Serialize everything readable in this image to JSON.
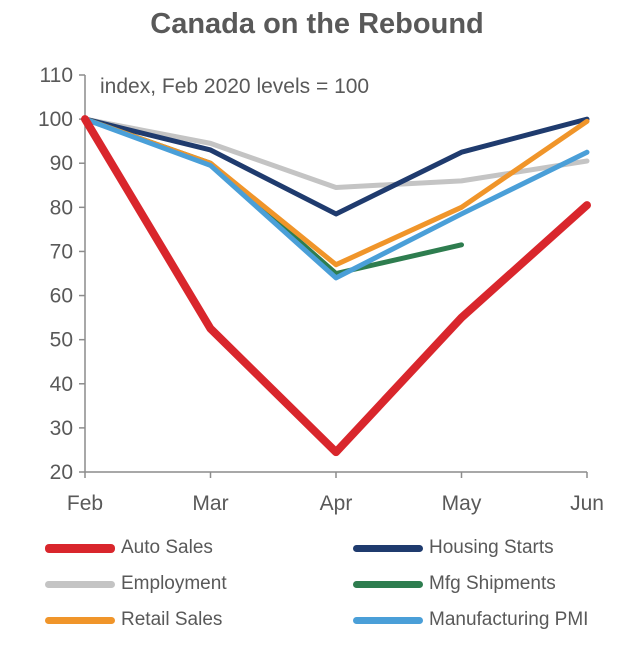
{
  "chart_data": {
    "type": "line",
    "title": "Canada on the Rebound",
    "annotation": "index,  Feb 2020 levels = 100",
    "categories": [
      "Feb",
      "Mar",
      "Apr",
      "May",
      "Jun"
    ],
    "ylim": [
      20,
      110
    ],
    "yticks": [
      20,
      30,
      40,
      50,
      60,
      70,
      80,
      90,
      100,
      110
    ],
    "grid": false,
    "legend_position": "bottom",
    "series": [
      {
        "name": "Auto Sales",
        "color": "#d9262c",
        "values": [
          100,
          52.5,
          24.5,
          55,
          80.5
        ]
      },
      {
        "name": "Housing Starts",
        "color": "#1f3b6e",
        "values": [
          100,
          93,
          78.5,
          92.5,
          100
        ]
      },
      {
        "name": "Employment",
        "color": "#c4c4c4",
        "values": [
          100,
          94.5,
          84.5,
          86,
          90.5
        ]
      },
      {
        "name": "Mfg Shipments",
        "color": "#2e7d4f",
        "values": [
          100,
          90,
          65,
          71.5,
          null
        ]
      },
      {
        "name": "Retail Sales",
        "color": "#f0952a",
        "values": [
          100,
          90,
          67,
          80,
          99.5
        ]
      },
      {
        "name": "Manufacturing PMI",
        "color": "#4a9fd8",
        "values": [
          100,
          89.5,
          64,
          78.5,
          92.5
        ]
      }
    ]
  }
}
